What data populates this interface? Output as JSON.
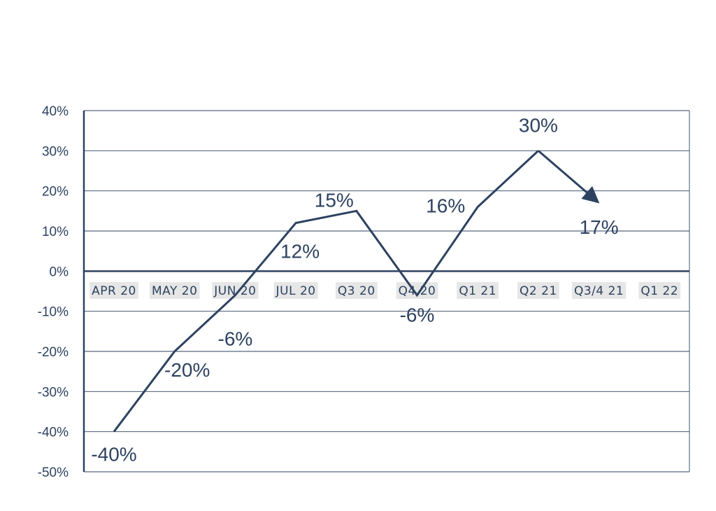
{
  "chart_data": {
    "type": "line",
    "title": "",
    "xlabel": "",
    "ylabel": "",
    "ylim": [
      -50,
      40
    ],
    "ytick_values": [
      40,
      30,
      20,
      10,
      0,
      -10,
      -20,
      -30,
      -40,
      -50
    ],
    "ytick_labels": [
      "40%",
      "30%",
      "20%",
      "10%",
      "0%",
      "-10%",
      "-20%",
      "-30%",
      "-40%",
      "-50%"
    ],
    "categories": [
      "APR 20",
      "MAY 20",
      "JUN 20",
      "JUL 20",
      "Q3 20",
      "Q4 20",
      "Q1 21",
      "Q2 21",
      "Q3/4 21",
      "Q1 22"
    ],
    "series": [
      {
        "values": [
          -40,
          -20,
          -6,
          12,
          15,
          -6,
          16,
          30,
          17,
          null
        ],
        "labels": [
          "-40%",
          "-20%",
          "-6%",
          "12%",
          "15%",
          "-6%",
          "16%",
          "30%",
          "17%",
          ""
        ]
      }
    ],
    "grid": true,
    "legend": "none",
    "colors": {
      "line": "#2d4260",
      "grid": "#2d4260",
      "tick_label_bg": "#e6e6e6"
    }
  }
}
